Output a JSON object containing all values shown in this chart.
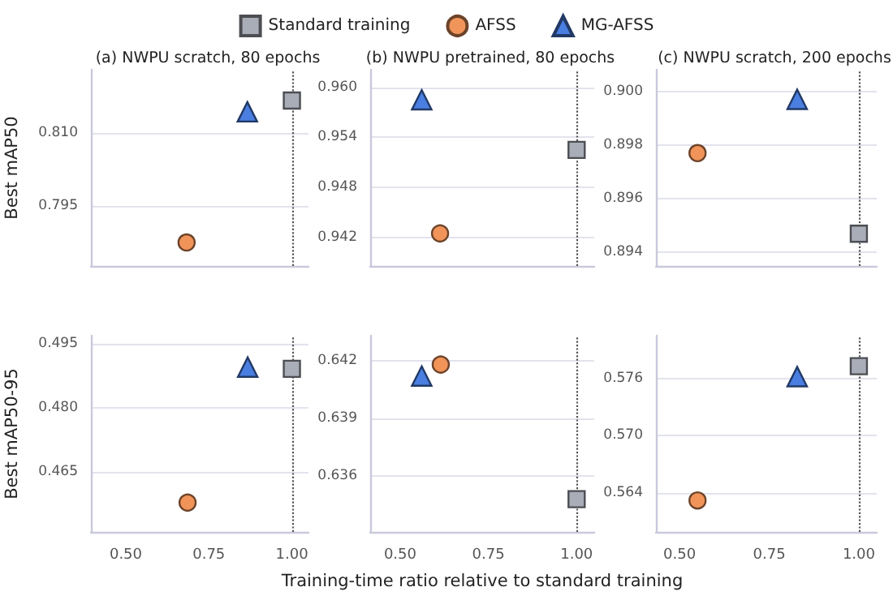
{
  "chart_data": [
    {
      "type": "scatter",
      "title": "(a) NWPU scratch, 80 epochs",
      "ylabel": "Best mAP50",
      "legend": "top",
      "grid": "y",
      "tick_labels": "y",
      "xlim": [
        0.395,
        1.05
      ],
      "ylim": [
        0.7828,
        0.8229
      ],
      "yticks": [
        {
          "value": 0.795,
          "label": "0.795"
        },
        {
          "value": 0.81,
          "label": "0.810"
        }
      ],
      "ref_lines": [
        {
          "axis": "x",
          "value": 1,
          "line_style": "dotted",
          "color": "#555555"
        }
      ],
      "series": [
        {
          "name": "Standard training",
          "color": "#a9adb8",
          "marker": "square",
          "x": [
            1
          ],
          "values": [
            0.8166
          ]
        },
        {
          "name": "AFSS",
          "color": "#f0945a",
          "marker": "circle",
          "x": [
            0.683
          ],
          "values": [
            0.7876
          ]
        },
        {
          "name": "MG-AFSS",
          "color": "#4a7ee0",
          "marker": "triangle",
          "x": [
            0.866
          ],
          "values": [
            0.8143
          ]
        }
      ]
    },
    {
      "type": "scatter",
      "title": "(b) NWPU pretrained, 80 epochs",
      "grid": "y",
      "tick_labels": "y",
      "xlim": [
        0.415,
        1.05
      ],
      "ylim": [
        0.9386,
        0.9621
      ],
      "yticks": [
        0.942,
        0.948,
        0.954,
        {
          "value": 0.96,
          "label": "0.960"
        }
      ],
      "ref_lines": [
        {
          "axis": "x",
          "value": 1,
          "line_style": "dotted",
          "color": "#555555"
        }
      ],
      "series": [
        {
          "color": "#a9adb8",
          "marker": "square",
          "x": [
            1
          ],
          "values": [
            0.9525
          ]
        },
        {
          "color": "#f0945a",
          "marker": "circle",
          "x": [
            0.613
          ],
          "values": [
            0.9425
          ]
        },
        {
          "color": "#4a7ee0",
          "marker": "triangle",
          "x": [
            0.561
          ],
          "values": [
            0.9585
          ]
        }
      ]
    },
    {
      "type": "scatter",
      "title": "(c) NWPU scratch, 200 epochs",
      "grid": "y",
      "tick_labels": "y",
      "xlim": [
        0.434,
        1.05
      ],
      "ylim": [
        0.8935,
        0.9008
      ],
      "yticks": [
        0.894,
        0.896,
        0.898,
        {
          "value": 0.9,
          "label": "0.900"
        }
      ],
      "ref_lines": [
        {
          "axis": "x",
          "value": 1,
          "line_style": "dotted",
          "color": "#555555"
        }
      ],
      "series": [
        {
          "color": "#a9adb8",
          "marker": "square",
          "x": [
            1
          ],
          "values": [
            0.8947
          ]
        },
        {
          "color": "#f0945a",
          "marker": "circle",
          "x": [
            0.55
          ],
          "values": [
            0.8977
          ]
        },
        {
          "color": "#4a7ee0",
          "marker": "triangle",
          "x": [
            0.828
          ],
          "values": [
            0.8997
          ]
        }
      ]
    },
    {
      "type": "scatter",
      "ylabel": "Best mAP50-95",
      "grid": "y",
      "xlim": [
        0.395,
        1.05
      ],
      "ylim": [
        0.4508,
        0.497
      ],
      "xticks": [
        {
          "value": 0.5,
          "label": "0.50"
        },
        {
          "value": 0.75,
          "label": "0.75"
        },
        {
          "value": 1,
          "label": "1.00"
        }
      ],
      "yticks": [
        0.465,
        {
          "value": 0.48,
          "label": "0.480"
        },
        0.495
      ],
      "ref_lines": [
        {
          "axis": "x",
          "value": 1,
          "line_style": "dotted",
          "color": "#555555"
        }
      ],
      "series": [
        {
          "color": "#a9adb8",
          "marker": "square",
          "x": [
            1
          ],
          "values": [
            0.4892
          ]
        },
        {
          "color": "#f0945a",
          "marker": "circle",
          "x": [
            0.686
          ],
          "values": [
            0.4577
          ]
        },
        {
          "color": "#4a7ee0",
          "marker": "triangle",
          "x": [
            0.867
          ],
          "values": [
            0.4896
          ]
        }
      ]
    },
    {
      "type": "scatter",
      "xlabel": "Training-time ratio relative to standard training",
      "grid": "y",
      "xlim": [
        0.415,
        1.05
      ],
      "ylim": [
        0.6331,
        0.6433
      ],
      "xticks": [
        {
          "value": 0.5,
          "label": "0.50"
        },
        {
          "value": 0.75,
          "label": "0.75"
        },
        {
          "value": 1,
          "label": "1.00"
        }
      ],
      "yticks": [
        0.636,
        0.639,
        0.642
      ],
      "ref_lines": [
        {
          "axis": "x",
          "value": 1,
          "line_style": "dotted",
          "color": "#555555"
        }
      ],
      "series": [
        {
          "color": "#a9adb8",
          "marker": "square",
          "x": [
            1
          ],
          "values": [
            0.6348
          ]
        },
        {
          "color": "#f0945a",
          "marker": "circle",
          "x": [
            0.615
          ],
          "values": [
            0.6418
          ]
        },
        {
          "color": "#4a7ee0",
          "marker": "triangle",
          "x": [
            0.561
          ],
          "values": [
            0.6412
          ]
        }
      ]
    },
    {
      "type": "scatter",
      "grid": "y",
      "xlim": [
        0.434,
        1.05
      ],
      "ylim": [
        0.5599,
        0.5805
      ],
      "xticks": [
        {
          "value": 0.5,
          "label": "0.50"
        },
        {
          "value": 0.75,
          "label": "0.75"
        },
        {
          "value": 1,
          "label": "1.00"
        }
      ],
      "yticks": [
        0.564,
        {
          "value": 0.57,
          "label": "0.570"
        },
        0.576
      ],
      "ref_lines": [
        {
          "axis": "x",
          "value": 1,
          "line_style": "dotted",
          "color": "#555555"
        }
      ],
      "series": [
        {
          "color": "#a9adb8",
          "marker": "square",
          "x": [
            1
          ],
          "values": [
            0.5773
          ]
        },
        {
          "color": "#f0945a",
          "marker": "circle",
          "x": [
            0.55
          ],
          "values": [
            0.5632
          ]
        },
        {
          "color": "#4a7ee0",
          "marker": "triangle",
          "x": [
            0.828
          ],
          "values": [
            0.5762
          ]
        }
      ]
    }
  ]
}
